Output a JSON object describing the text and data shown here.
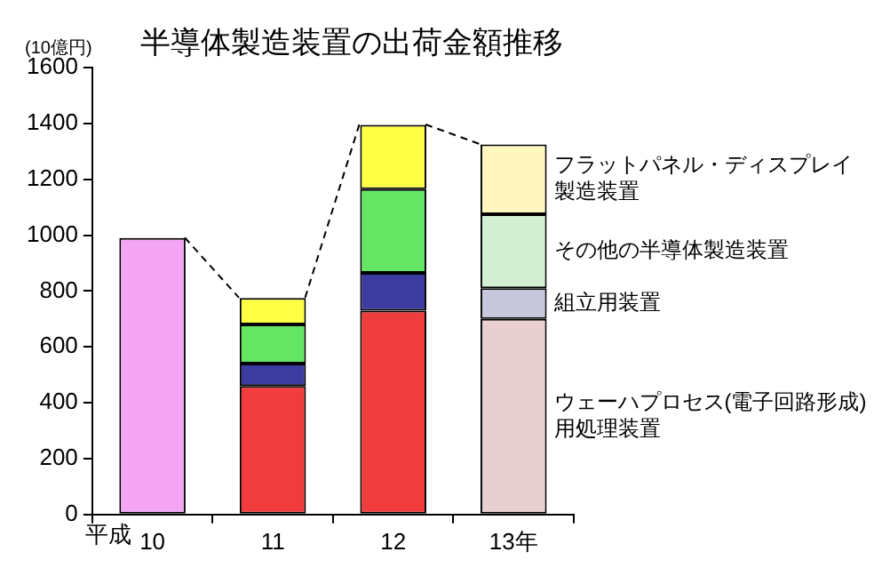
{
  "chart_data": {
    "type": "bar",
    "title": "半導体製造装置の出荷金額推移",
    "ylabel": "(10億円)",
    "annotations": [
      "平成"
    ],
    "categories": [
      "10",
      "11",
      "12",
      "13年"
    ],
    "stacked": true,
    "legend": "right",
    "grid": false,
    "ylim": [
      0,
      1600
    ],
    "yticks": [
      0,
      200,
      400,
      600,
      800,
      1000,
      1200,
      1400,
      1600
    ],
    "series": [
      {
        "color": "#f4a6f4",
        "values": [
          990,
          null,
          null,
          null
        ]
      },
      {
        "name": "ウェーハプロセス(電子回路形成)用処理装置",
        "colors": [
          "#f03c3c",
          "#f03c3c",
          "#f03c3c",
          "#e8d0d0"
        ],
        "values": [
          null,
          460,
          730,
          700
        ]
      },
      {
        "name": "組立用装置",
        "colors": [
          "#3c3ca0",
          "#3c3ca0",
          "#3c3ca0",
          "#c8c8dc"
        ],
        "values": [
          null,
          80,
          135,
          110
        ]
      },
      {
        "name": "その他の半導体製造装置",
        "colors": [
          "#64e664",
          "#64e664",
          "#64e664",
          "#d4f0d4"
        ],
        "values": [
          null,
          140,
          300,
          265
        ]
      },
      {
        "name": "フラットパネル・ディスプレイ製造装置",
        "colors": [
          "#ffff46",
          "#ffff46",
          "#ffff46",
          "#fff6c0"
        ],
        "values": [
          null,
          95,
          230,
          250
        ]
      }
    ]
  }
}
